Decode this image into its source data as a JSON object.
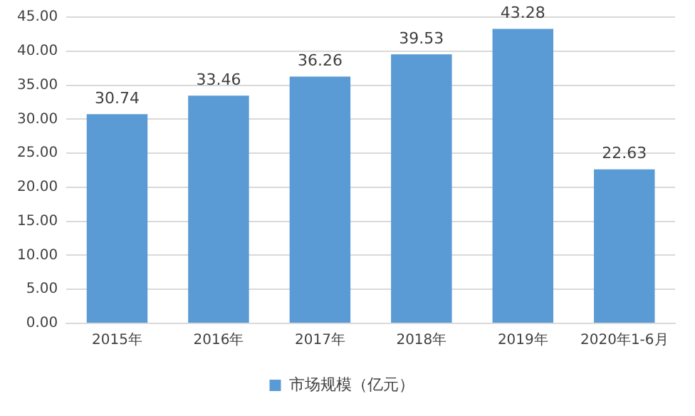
{
  "chart_data": {
    "type": "bar",
    "categories": [
      "2015年",
      "2016年",
      "2017年",
      "2018年",
      "2019年",
      "2020年1-6月"
    ],
    "series": [
      {
        "name": "市场规模（亿元）",
        "color": "#5b9bd5",
        "values": [
          30.74,
          33.46,
          36.26,
          39.53,
          43.28,
          22.63
        ]
      }
    ],
    "ylim": [
      0,
      45
    ],
    "yticks": [
      {
        "value": 0,
        "label": "0.00"
      },
      {
        "value": 5,
        "label": "5.00"
      },
      {
        "value": 10,
        "label": "10.00"
      },
      {
        "value": 15,
        "label": "15.00"
      },
      {
        "value": 20,
        "label": "20.00"
      },
      {
        "value": 25,
        "label": "25.00"
      },
      {
        "value": 30,
        "label": "30.00"
      },
      {
        "value": 35,
        "label": "35.00"
      },
      {
        "value": 40,
        "label": "40.00"
      },
      {
        "value": 45,
        "label": "45.00"
      }
    ],
    "grid": "y",
    "legend": "bottom",
    "data_labels": true
  }
}
